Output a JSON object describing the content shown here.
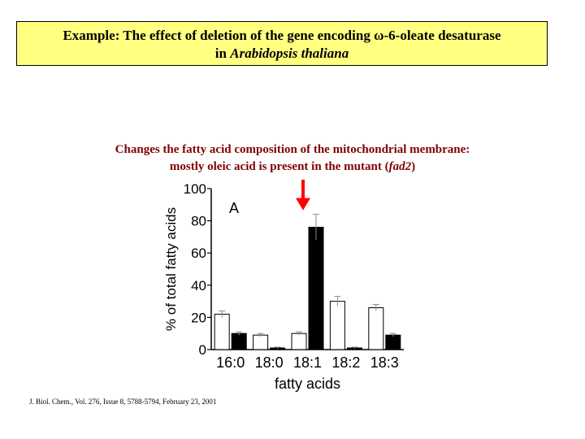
{
  "title": {
    "line1_prefix": "Example:  The effect of deletion of the gene encoding ",
    "omega": "ω",
    "line1_suffix": "-6-oleate desaturase",
    "line2_prefix": "in ",
    "line2_italic": "Arabidopsis thaliana"
  },
  "caption": {
    "line1": "Changes the fatty acid composition of the mitochondrial membrane:",
    "line2_prefix": "mostly oleic acid is present in the mutant (",
    "line2_italic": "fad2",
    "line2_suffix": ")"
  },
  "citation": "J. Biol. Chem., Vol. 276, Issue 8, 5788-5794, February 23, 2001",
  "colors": {
    "title_bg": "#ffff80",
    "caption_text": "#800000",
    "arrow": "#ff0000",
    "wild_type_bar": "#ffffff",
    "mutant_bar": "#000000"
  },
  "chart_data": {
    "type": "bar",
    "panel_label": "A",
    "xlabel": "fatty acids",
    "ylabel": "% of total fatty acids",
    "ylim": [
      0,
      100
    ],
    "yticks": [
      0,
      20,
      40,
      60,
      80,
      100
    ],
    "categories": [
      "16:0",
      "18:0",
      "18:1",
      "18:2",
      "18:3"
    ],
    "series": [
      {
        "values": [
          22,
          9,
          10,
          30,
          26
        ],
        "errors": [
          2,
          1,
          1,
          3,
          2
        ],
        "fill": "#ffffff"
      },
      {
        "values": [
          10,
          1,
          76,
          1,
          9
        ],
        "errors": [
          1,
          0.5,
          8,
          0.5,
          1
        ],
        "fill": "#000000"
      }
    ],
    "highlight_category": "18:1",
    "grid": false
  }
}
